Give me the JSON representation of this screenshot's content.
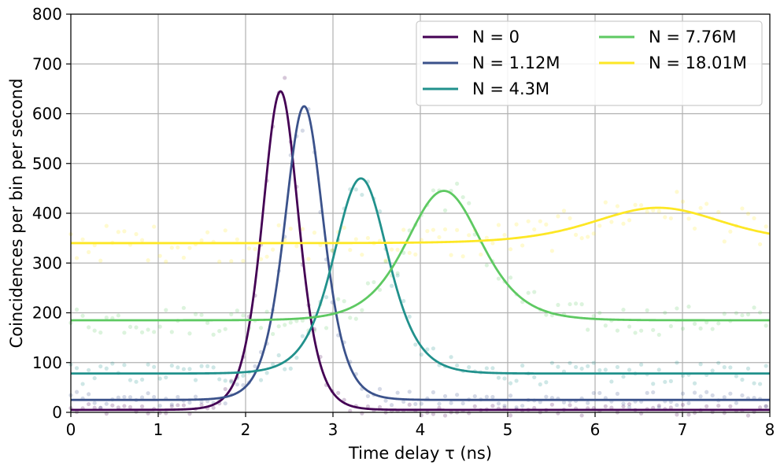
{
  "chart_data": {
    "type": "line",
    "xlabel": "Time delay τ (ns)",
    "ylabel": "Coincidences per bin per second",
    "xlim": [
      0,
      8
    ],
    "ylim": [
      0,
      800
    ],
    "xticks": [
      "0",
      "1",
      "2",
      "3",
      "4",
      "5",
      "6",
      "7",
      "8"
    ],
    "yticks": [
      "0",
      "100",
      "200",
      "300",
      "400",
      "500",
      "600",
      "700",
      "800"
    ],
    "grid": true,
    "legend_position": "top-right",
    "legend_columns": 2,
    "series": [
      {
        "name": "N = 0",
        "color": "#440154",
        "baseline": 5,
        "peak_x": 2.4,
        "peak_y": 645,
        "width": 0.28
      },
      {
        "name": "N = 1.12M",
        "color": "#3b528b",
        "baseline": 25,
        "peak_x": 2.67,
        "peak_y": 615,
        "width": 0.3
      },
      {
        "name": "N = 4.3M",
        "color": "#21918c",
        "baseline": 78,
        "peak_x": 3.32,
        "peak_y": 470,
        "width": 0.42
      },
      {
        "name": "N = 7.76M",
        "color": "#5ec962",
        "baseline": 185,
        "peak_x": 4.27,
        "peak_y": 445,
        "width": 0.58
      },
      {
        "name": "N = 18.01M",
        "color": "#fde725",
        "baseline": 340,
        "peak_x": 6.72,
        "peak_y": 411,
        "width": 1.0
      }
    ]
  }
}
